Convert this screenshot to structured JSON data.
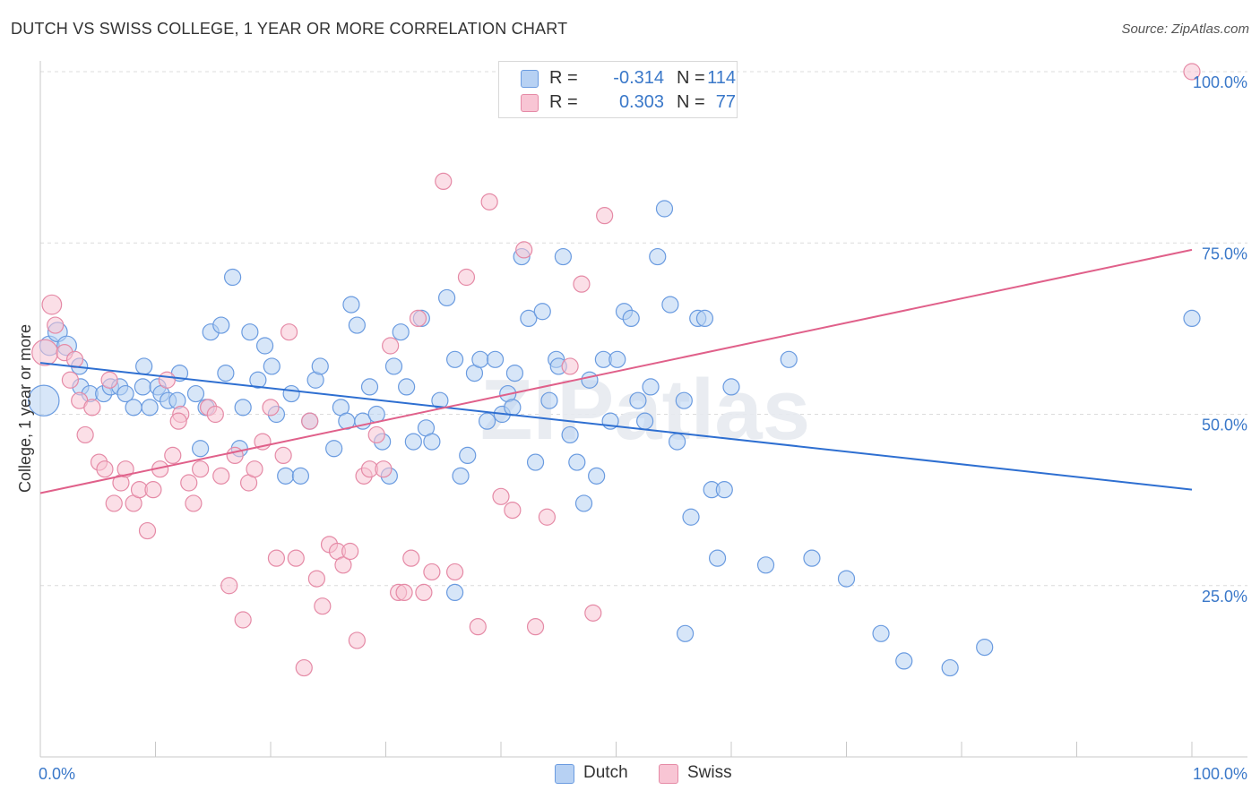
{
  "header": {
    "title": "DUTCH VS SWISS COLLEGE, 1 YEAR OR MORE CORRELATION CHART",
    "source": "Source: ZipAtlas.com"
  },
  "watermark": "ZIPatlas",
  "legend": {
    "rows": [
      {
        "label": "R =",
        "r": "-0.314",
        "n_label": "N =",
        "n": "114",
        "color": "#a9c8f0",
        "stroke": "#5b8fd6"
      },
      {
        "label": "R =",
        "r": "0.303",
        "n_label": "N =",
        "n": "77",
        "color": "#f7bccd",
        "stroke": "#e07a9c"
      }
    ]
  },
  "bottom_legend": [
    {
      "label": "Dutch",
      "color": "#a9c8f0",
      "stroke": "#5b8fd6"
    },
    {
      "label": "Swiss",
      "color": "#f7bccd",
      "stroke": "#e07a9c"
    }
  ],
  "chart_data": {
    "type": "scatter",
    "ylabel": "College, 1 year or more",
    "xlim": [
      0,
      100
    ],
    "ylim": [
      0,
      100
    ],
    "x_tick_labels": [
      "0.0%",
      "100.0%"
    ],
    "y_ticks": [
      25,
      50,
      75,
      100
    ],
    "y_tick_labels": [
      "25.0%",
      "50.0%",
      "75.0%",
      "100.0%"
    ],
    "grid": true,
    "series": [
      {
        "name": "Dutch",
        "color": "#6a9be0",
        "fill": "#b7d1f3",
        "trend": {
          "x": [
            0,
            100
          ],
          "y": [
            57.5,
            39.0
          ],
          "color": "#2e6fd1"
        },
        "points": [
          [
            0.3,
            52,
            1.9
          ],
          [
            0.8,
            60,
            1.2
          ],
          [
            1.5,
            62,
            1.2
          ],
          [
            2.3,
            60,
            1.2
          ],
          [
            3.4,
            57,
            1
          ],
          [
            3.5,
            54,
            1
          ],
          [
            4.3,
            53,
            1
          ],
          [
            5.5,
            53,
            1
          ],
          [
            6.1,
            54,
            1
          ],
          [
            6.9,
            54,
            1
          ],
          [
            7.4,
            53,
            1
          ],
          [
            8.1,
            51,
            1
          ],
          [
            8.9,
            54,
            1
          ],
          [
            9.5,
            51,
            1
          ],
          [
            9.0,
            57,
            1
          ],
          [
            10.2,
            54,
            1
          ],
          [
            10.5,
            53,
            1
          ],
          [
            11.1,
            52,
            1
          ],
          [
            11.9,
            52,
            1
          ],
          [
            13.5,
            53,
            1
          ],
          [
            14.4,
            51,
            1
          ],
          [
            12.1,
            56,
            1
          ],
          [
            13.9,
            45,
            1
          ],
          [
            14.8,
            62,
            1
          ],
          [
            15.7,
            63,
            1
          ],
          [
            16.1,
            56,
            1
          ],
          [
            16.7,
            70,
            1
          ],
          [
            17.3,
            45,
            1
          ],
          [
            17.6,
            51,
            1
          ],
          [
            18.2,
            62,
            1
          ],
          [
            18.9,
            55,
            1
          ],
          [
            19.5,
            60,
            1
          ],
          [
            20.1,
            57,
            1
          ],
          [
            20.5,
            50,
            1
          ],
          [
            21.3,
            41,
            1
          ],
          [
            21.8,
            53,
            1
          ],
          [
            22.6,
            41,
            1
          ],
          [
            23.4,
            49,
            1
          ],
          [
            23.9,
            55,
            1
          ],
          [
            24.3,
            57,
            1
          ],
          [
            25.5,
            45,
            1
          ],
          [
            26.1,
            51,
            1
          ],
          [
            26.6,
            49,
            1
          ],
          [
            27.0,
            66,
            1
          ],
          [
            27.5,
            63,
            1
          ],
          [
            28.0,
            49,
            1
          ],
          [
            28.6,
            54,
            1
          ],
          [
            29.2,
            50,
            1
          ],
          [
            29.7,
            46,
            1
          ],
          [
            30.3,
            41,
            1
          ],
          [
            30.7,
            57,
            1
          ],
          [
            31.3,
            62,
            1
          ],
          [
            31.8,
            54,
            1
          ],
          [
            32.4,
            46,
            1
          ],
          [
            33.1,
            64,
            1
          ],
          [
            33.5,
            48,
            1
          ],
          [
            34.0,
            46,
            1
          ],
          [
            34.7,
            52,
            1
          ],
          [
            35.3,
            67,
            1
          ],
          [
            36.0,
            58,
            1
          ],
          [
            36.5,
            41,
            1
          ],
          [
            37.1,
            44,
            1
          ],
          [
            37.7,
            56,
            1
          ],
          [
            38.2,
            58,
            1
          ],
          [
            38.8,
            49,
            1
          ],
          [
            39.5,
            58,
            1
          ],
          [
            40.1,
            50,
            1
          ],
          [
            40.6,
            53,
            1
          ],
          [
            41.2,
            56,
            1
          ],
          [
            41.8,
            73,
            1
          ],
          [
            42.4,
            64,
            1
          ],
          [
            43.0,
            43,
            1
          ],
          [
            43.6,
            65,
            1
          ],
          [
            44.2,
            52,
            1
          ],
          [
            44.8,
            58,
            1
          ],
          [
            45.4,
            73,
            1
          ],
          [
            46.0,
            47,
            1
          ],
          [
            46.6,
            43,
            1
          ],
          [
            47.2,
            37,
            1
          ],
          [
            47.7,
            55,
            1
          ],
          [
            48.3,
            41,
            1
          ],
          [
            48.9,
            58,
            1
          ],
          [
            49.5,
            49,
            1
          ],
          [
            50.1,
            58,
            1
          ],
          [
            50.7,
            65,
            1
          ],
          [
            51.3,
            64,
            1
          ],
          [
            51.9,
            52,
            1
          ],
          [
            52.5,
            49,
            1
          ],
          [
            53.0,
            54,
            1
          ],
          [
            53.6,
            73,
            1
          ],
          [
            54.2,
            80,
            1
          ],
          [
            54.7,
            66,
            1
          ],
          [
            55.3,
            46,
            1
          ],
          [
            55.9,
            52,
            1
          ],
          [
            56.5,
            35,
            1
          ],
          [
            57.1,
            64,
            1
          ],
          [
            57.7,
            64,
            1
          ],
          [
            58.3,
            39,
            1
          ],
          [
            58.8,
            29,
            1
          ],
          [
            59.4,
            39,
            1
          ],
          [
            60.0,
            54,
            1
          ],
          [
            63.0,
            28,
            1
          ],
          [
            65.0,
            58,
            1
          ],
          [
            67.0,
            29,
            1
          ],
          [
            70.0,
            26,
            1
          ],
          [
            73.0,
            18,
            1
          ],
          [
            75.0,
            14,
            1
          ],
          [
            79.0,
            13,
            1
          ],
          [
            82.0,
            16,
            1
          ],
          [
            100.0,
            64,
            1
          ],
          [
            36.0,
            24,
            1
          ],
          [
            41.0,
            51,
            1
          ],
          [
            56.0,
            18,
            1
          ],
          [
            45.0,
            57,
            1
          ]
        ]
      },
      {
        "name": "Swiss",
        "color": "#e58aa6",
        "fill": "#f8c5d4",
        "trend": {
          "x": [
            0,
            100
          ],
          "y": [
            38.5,
            74.0
          ],
          "color": "#e0608a"
        },
        "points": [
          [
            0.4,
            59,
            1.6
          ],
          [
            1.0,
            66,
            1.2
          ],
          [
            1.3,
            63,
            1
          ],
          [
            2.1,
            59,
            1
          ],
          [
            2.6,
            55,
            1
          ],
          [
            3.4,
            52,
            1
          ],
          [
            3.9,
            47,
            1
          ],
          [
            4.5,
            51,
            1
          ],
          [
            5.1,
            43,
            1
          ],
          [
            5.6,
            42,
            1
          ],
          [
            6.4,
            37,
            1
          ],
          [
            7.0,
            40,
            1
          ],
          [
            7.4,
            42,
            1
          ],
          [
            8.1,
            37,
            1
          ],
          [
            8.6,
            39,
            1
          ],
          [
            9.3,
            33,
            1
          ],
          [
            9.8,
            39,
            1
          ],
          [
            10.4,
            42,
            1
          ],
          [
            11.0,
            55,
            1
          ],
          [
            11.5,
            44,
            1
          ],
          [
            12.2,
            50,
            1
          ],
          [
            12.9,
            40,
            1
          ],
          [
            13.3,
            37,
            1
          ],
          [
            13.9,
            42,
            1
          ],
          [
            14.6,
            51,
            1
          ],
          [
            15.2,
            50,
            1
          ],
          [
            15.7,
            41,
            1
          ],
          [
            16.4,
            25,
            1
          ],
          [
            16.9,
            44,
            1
          ],
          [
            17.6,
            20,
            1
          ],
          [
            18.1,
            40,
            1
          ],
          [
            18.6,
            42,
            1
          ],
          [
            19.3,
            46,
            1
          ],
          [
            20.0,
            51,
            1
          ],
          [
            20.5,
            29,
            1
          ],
          [
            21.1,
            44,
            1
          ],
          [
            21.6,
            62,
            1
          ],
          [
            22.2,
            29,
            1
          ],
          [
            22.9,
            13,
            1
          ],
          [
            23.4,
            49,
            1
          ],
          [
            24.0,
            26,
            1
          ],
          [
            24.5,
            22,
            1
          ],
          [
            25.1,
            31,
            1
          ],
          [
            25.8,
            30,
            1
          ],
          [
            26.3,
            28,
            1
          ],
          [
            26.9,
            30,
            1
          ],
          [
            27.5,
            17,
            1
          ],
          [
            28.1,
            41,
            1
          ],
          [
            28.6,
            42,
            1
          ],
          [
            29.2,
            47,
            1
          ],
          [
            29.8,
            42,
            1
          ],
          [
            30.4,
            60,
            1
          ],
          [
            31.1,
            24,
            1
          ],
          [
            31.6,
            24,
            1
          ],
          [
            32.2,
            29,
            1
          ],
          [
            32.8,
            64,
            1
          ],
          [
            33.3,
            24,
            1
          ],
          [
            34.0,
            27,
            1
          ],
          [
            35.0,
            84,
            1
          ],
          [
            36.0,
            27,
            1
          ],
          [
            37.0,
            70,
            1
          ],
          [
            38.0,
            19,
            1
          ],
          [
            39.0,
            81,
            1
          ],
          [
            40.0,
            38,
            1
          ],
          [
            41.0,
            36,
            1
          ],
          [
            42.0,
            74,
            1
          ],
          [
            43.0,
            19,
            1
          ],
          [
            44.0,
            35,
            1
          ],
          [
            46.0,
            57,
            1
          ],
          [
            47.0,
            69,
            1
          ],
          [
            48.0,
            21,
            1
          ],
          [
            49.0,
            79,
            1
          ],
          [
            52.0,
            100,
            1
          ],
          [
            100.0,
            100,
            1
          ],
          [
            3.0,
            58,
            1
          ],
          [
            6.0,
            55,
            1
          ],
          [
            12.0,
            49,
            1
          ]
        ]
      }
    ]
  }
}
